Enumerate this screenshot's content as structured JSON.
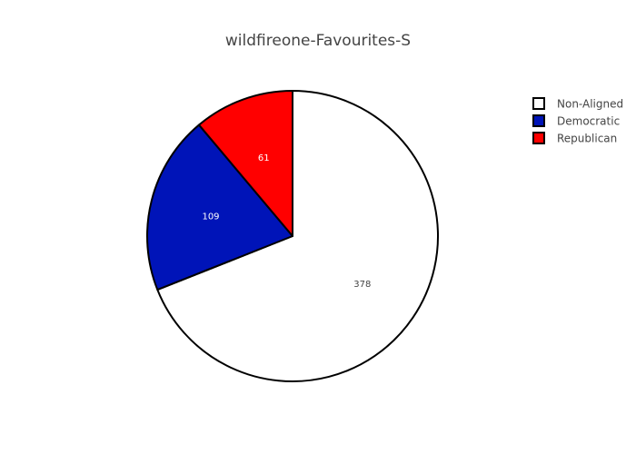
{
  "chart_data": {
    "type": "pie",
    "title": "wildfireone-Favourites-S",
    "legend_position": "top-right",
    "slices": [
      {
        "label": "Non-Aligned",
        "value": 378,
        "color": "#ffffff",
        "label_color": "#444444"
      },
      {
        "label": "Democratic",
        "value": 109,
        "color": "#0014b8",
        "label_color": "#ffffff"
      },
      {
        "label": "Republican",
        "value": 61,
        "color": "#ff0000",
        "label_color": "#ffffff"
      }
    ],
    "outline_color": "#000000",
    "start_angle_deg": 0,
    "direction": "clockwise"
  }
}
